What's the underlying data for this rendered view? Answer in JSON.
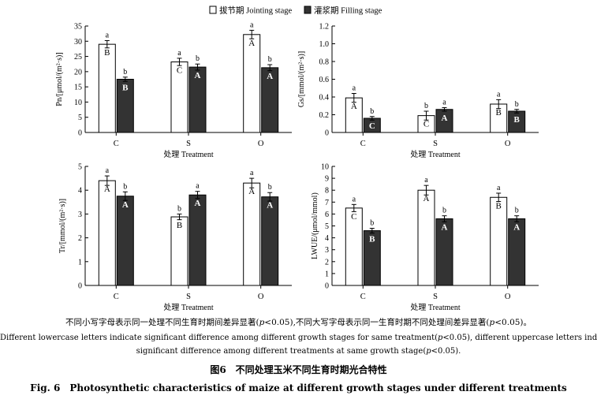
{
  "legend": {
    "jointing": "拔节期 Jointing stage",
    "filling": "灌浆期 Filling stage"
  },
  "chart_data": [
    {
      "type": "bar",
      "ylabel": "Pn/[μmol/(m²·s)]",
      "xlabel": "处理 Treatment",
      "categories": [
        "C",
        "S",
        "O"
      ],
      "ylim": [
        0,
        35
      ],
      "yticks": [
        "0",
        "5",
        "10",
        "15",
        "20",
        "25",
        "30",
        "35"
      ],
      "series": [
        {
          "name": "拔节期 Jointing stage",
          "values": [
            29,
            23.2,
            32.2
          ],
          "errors": [
            1.2,
            1.2,
            1.4
          ],
          "lower_letters": [
            "a",
            "a",
            "a"
          ],
          "upper_letters": [
            "B",
            "C",
            "A"
          ]
        },
        {
          "name": "灌浆期 Filling stage",
          "values": [
            17.5,
            21.5,
            21.3
          ],
          "errors": [
            0.7,
            1.0,
            1.0
          ],
          "lower_letters": [
            "b",
            "b",
            "b"
          ],
          "upper_letters": [
            "B",
            "A",
            "A"
          ]
        }
      ]
    },
    {
      "type": "bar",
      "ylabel": "Gs/[mmol/(m²·s)]",
      "xlabel": "处理 Treatment",
      "categories": [
        "C",
        "S",
        "O"
      ],
      "ylim": [
        0,
        1.2
      ],
      "yticks": [
        "0",
        "0.2",
        "0.4",
        "0.6",
        "0.8",
        "1.0",
        "1.2"
      ],
      "series": [
        {
          "name": "拔节期 Jointing stage",
          "values": [
            0.39,
            0.19,
            0.32
          ],
          "errors": [
            0.05,
            0.05,
            0.05
          ],
          "lower_letters": [
            "a",
            "b",
            "a"
          ],
          "upper_letters": [
            "A",
            "C",
            "B"
          ]
        },
        {
          "name": "灌浆期 Filling stage",
          "values": [
            0.16,
            0.26,
            0.24
          ],
          "errors": [
            0.02,
            0.02,
            0.02
          ],
          "lower_letters": [
            "b",
            "a",
            "b"
          ],
          "upper_letters": [
            "C",
            "A",
            "B"
          ]
        }
      ]
    },
    {
      "type": "bar",
      "ylabel": "Tr/[mmol/(m²·s)]",
      "xlabel": "处理 Treatment",
      "categories": [
        "C",
        "S",
        "O"
      ],
      "ylim": [
        0,
        5
      ],
      "yticks": [
        "0",
        "1",
        "2",
        "3",
        "4",
        "5"
      ],
      "series": [
        {
          "name": "拔节期 Jointing stage",
          "values": [
            4.4,
            2.88,
            4.3
          ],
          "errors": [
            0.2,
            0.12,
            0.2
          ],
          "lower_letters": [
            "a",
            "b",
            "a"
          ],
          "upper_letters": [
            "A",
            "B",
            "A"
          ]
        },
        {
          "name": "灌浆期 Filling stage",
          "values": [
            3.75,
            3.8,
            3.72
          ],
          "errors": [
            0.18,
            0.15,
            0.18
          ],
          "lower_letters": [
            "b",
            "a",
            "b"
          ],
          "upper_letters": [
            "A",
            "A",
            "A"
          ]
        }
      ]
    },
    {
      "type": "bar",
      "ylabel": "LWUE/(μmol/mmol)",
      "xlabel": "处理 Treatment",
      "categories": [
        "C",
        "S",
        "O"
      ],
      "ylim": [
        0,
        10
      ],
      "yticks": [
        "0",
        "1",
        "2",
        "3",
        "4",
        "5",
        "6",
        "7",
        "8",
        "9",
        "10"
      ],
      "series": [
        {
          "name": "拔节期 Jointing stage",
          "values": [
            6.5,
            8.0,
            7.4
          ],
          "errors": [
            0.3,
            0.4,
            0.35
          ],
          "lower_letters": [
            "a",
            "a",
            "a"
          ],
          "upper_letters": [
            "C",
            "A",
            "B"
          ]
        },
        {
          "name": "灌浆期 Filling stage",
          "values": [
            4.6,
            5.6,
            5.6
          ],
          "errors": [
            0.2,
            0.25,
            0.25
          ],
          "lower_letters": [
            "b",
            "b",
            "b"
          ],
          "upper_letters": [
            "B",
            "A",
            "A"
          ]
        }
      ]
    }
  ],
  "caption": {
    "note_cn_pre": "不同小写字母表示同一处理不同生育时期间差异显著(",
    "p_symbol": "p",
    "note_cn_mid": "<0.05),不同大写字母表示同一生育时期不同处理间差异显著(",
    "note_cn_post": "<0.05)。",
    "note_en_line1_pre": "Different lowercase letters indicate significant difference among different growth stages for same treatment(",
    "note_en_line1_post": "<0.05), different uppercase letters indicate",
    "note_en_line2_pre": "significant difference among different treatments at same growth stage(",
    "note_en_line2_post": "<0.05).",
    "title_cn": "图6　不同处理玉米不同生育时期光合特性",
    "title_en": "Fig. 6　Photosynthetic characteristics of maize at different growth stages under different treatments"
  },
  "colors": {
    "jointing_fill": "#ffffff",
    "filling_fill": "#333333",
    "stroke": "#000000"
  }
}
